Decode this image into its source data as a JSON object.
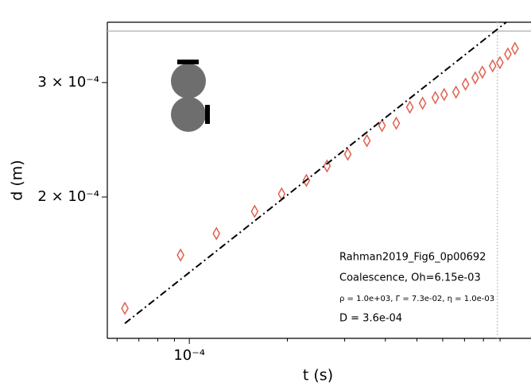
{
  "chart_data": {
    "type": "scatter",
    "xlabel": "t (s)",
    "ylabel": "d (m)",
    "xscale": "log",
    "yscale": "log",
    "xlim": [
      5.6e-05,
      0.00112
    ],
    "ylim": [
      0.0001212,
      0.0003715
    ],
    "xticks": [
      {
        "value": 0.0001,
        "label": "10⁻⁴"
      }
    ],
    "xminorticks": [
      6e-05,
      7e-05,
      8e-05,
      9e-05,
      0.0002,
      0.0003,
      0.0004,
      0.0005,
      0.0006,
      0.0007,
      0.0008,
      0.0009
    ],
    "yticks": [
      {
        "value": 0.0002,
        "label": "2 × 10⁻⁴"
      },
      {
        "value": 0.0003,
        "label": "3 × 10⁻⁴"
      }
    ],
    "series": [
      {
        "color": "#e0604e",
        "marker": "diamond",
        "x": [
          6.34e-05,
          9.4e-05,
          0.0001211,
          0.0001587,
          0.0001921,
          0.0002288,
          0.0002648,
          0.0003066,
          0.000351,
          0.0003906,
          0.000432,
          0.0004756,
          0.0005204,
          0.0005695,
          0.000606,
          0.000659,
          0.000705,
          0.000755,
          0.000794,
          0.000854,
          0.000899,
          0.000951,
          0.001
        ],
        "values": [
          0.0001348,
          0.0001628,
          0.0001757,
          0.0001901,
          0.0002022,
          0.0002121,
          0.0002232,
          0.0002328,
          0.0002442,
          0.0002576,
          0.0002598,
          0.0002749,
          0.0002788,
          0.0002844,
          0.0002876,
          0.00029,
          0.0002983,
          0.0003051,
          0.0003112,
          0.0003183,
          0.0003219,
          0.0003319,
          0.0003386
        ]
      },
      {
        "type": "line",
        "color": "#000000",
        "dash": "dashdot",
        "x": [
          6.34e-05,
          0.00094
        ],
        "values": [
          0.0001278,
          0.0003715
        ]
      }
    ],
    "hline": {
      "value": 0.00036,
      "color": "#bbbbbb"
    },
    "vline": {
      "value": 0.000883,
      "color": "#cccccc"
    },
    "annotations": [
      "Rahman2019_Fig6_0p00692",
      "Coalescence, Oh=6.15e-03",
      "ρ = 1.0e+03, Γ = 7.3e-02, η = 1.0e-03",
      "D = 3.6e-04"
    ]
  }
}
